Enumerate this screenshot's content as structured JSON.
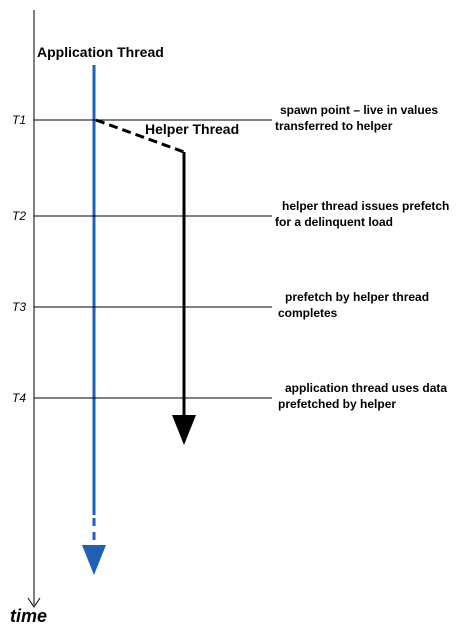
{
  "app_thread": "Application Thread",
  "helper_thread": "Helper Thread",
  "axis_label": "time",
  "events": [
    {
      "label": "T1",
      "lines": [
        "spawn point – live in values",
        "transferred to helper"
      ]
    },
    {
      "label": "T2",
      "lines": [
        "helper thread issues prefetch",
        "for a delinquent load"
      ]
    },
    {
      "label": "T3",
      "lines": [
        "prefetch by helper thread",
        "completes"
      ]
    },
    {
      "label": "T4",
      "lines": [
        "application thread uses data",
        "prefetched by helper"
      ]
    }
  ]
}
